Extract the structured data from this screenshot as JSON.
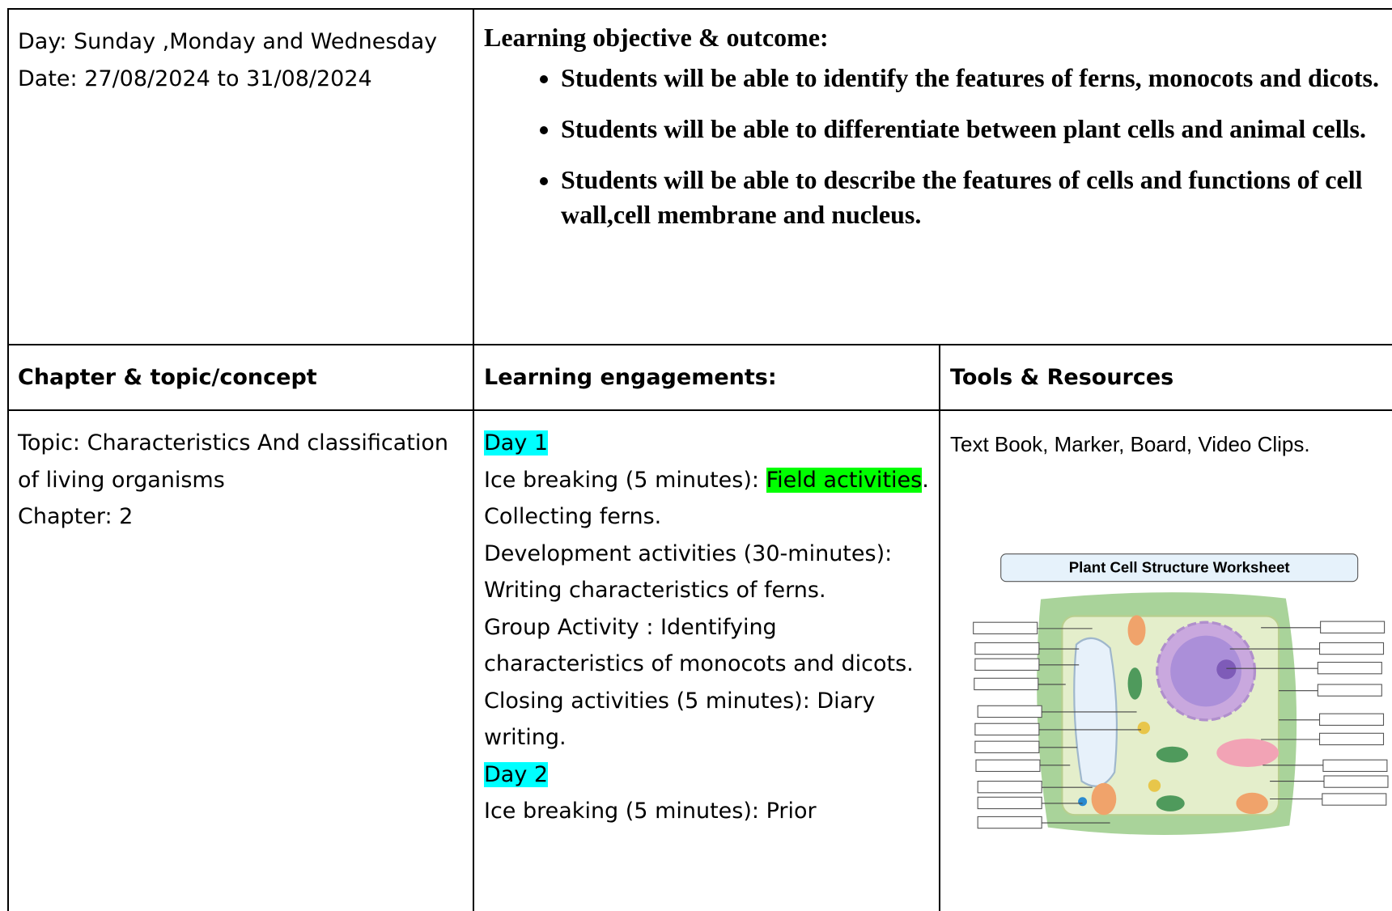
{
  "plan": {
    "day_cell": {
      "day": "Day: Sunday ,Monday and Wednesday",
      "date": "Date:  27/08/2024 to 31/08/2024"
    },
    "objectives": {
      "heading": "Learning objective & outcome:",
      "items": [
        "Students will be able to identify the features of ferns, monocots and dicots.",
        "Students will be able to differentiate between plant cells and animal cells.",
        "Students will be able to describe the features of cells and functions of cell wall,cell membrane and nucleus."
      ]
    },
    "headers": [
      "Chapter & topic/concept",
      "Learning engagements:",
      "Tools & Resources"
    ],
    "topic": {
      "topic": "Topic: Characteristics And classification of living organisms",
      "chapter": "Chapter: 2"
    },
    "engagements": [
      [
        {
          "text": "Day 1",
          "highlight": "#00ffff"
        }
      ],
      [
        {
          "text": "Ice breaking (5 minutes): "
        },
        {
          "text": "Field activities",
          "highlight": "#00ff00"
        },
        {
          "text": ". Collecting ferns."
        }
      ],
      [
        {
          "text": "Development activities (30-minutes): Writing characteristics of ferns."
        }
      ],
      [
        {
          "text": "Group Activity : Identifying characteristics of monocots and dicots."
        }
      ],
      [
        {
          "text": "Closing activities (5 minutes): Diary writing."
        }
      ],
      [
        {
          "text": "Day 2",
          "highlight": "#00ffff"
        }
      ],
      [
        {
          "text": "Ice breaking (5 minutes): Prior"
        }
      ]
    ],
    "tools": {
      "text": "Text Book, Marker, Board, Video Clips.",
      "worksheet_title": "Plant Cell Structure Worksheet"
    }
  }
}
